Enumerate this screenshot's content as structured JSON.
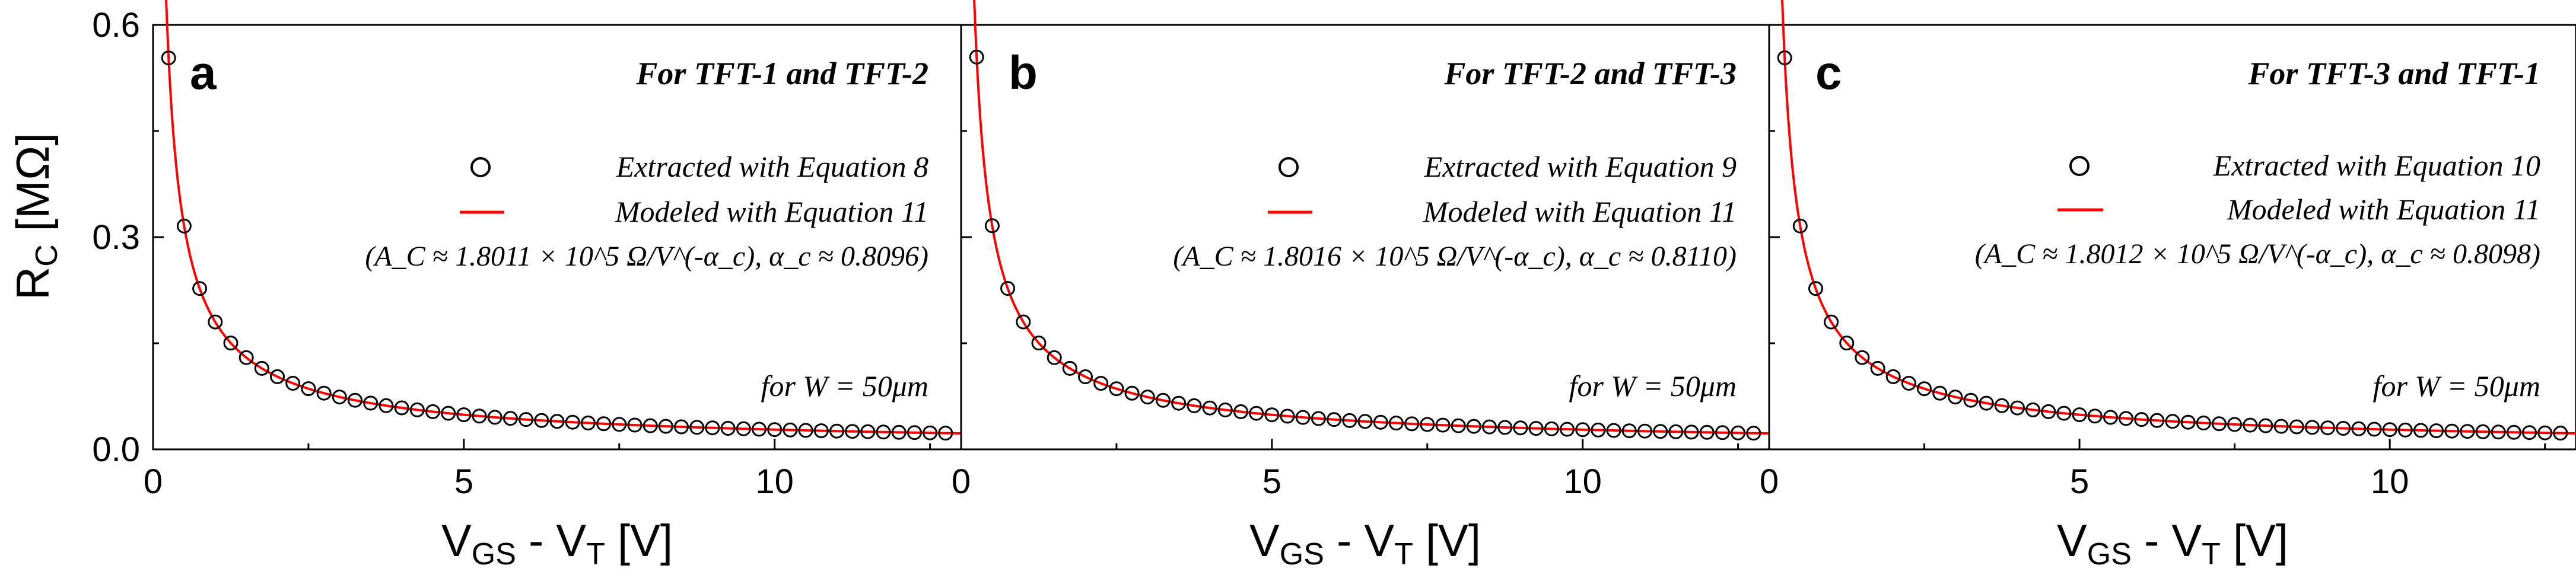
{
  "figure": {
    "ylabel_main": "R",
    "ylabel_sub": "C",
    "ylabel_unit": " [MΩ]",
    "xlabel_main": "V",
    "xlabel_sub1": "GS",
    "xlabel_mid": " - V",
    "xlabel_sub2": "T",
    "xlabel_unit": " [V]",
    "colors": {
      "model_line": "#ff0000",
      "markers": "#000000",
      "axes": "#000000"
    }
  },
  "chart_data": [
    {
      "type": "scatter",
      "panel_label": "a",
      "title": "For TFT-1 and TFT-2",
      "legend_extracted": "Extracted with Equation 8",
      "legend_modeled": "Modeled with Equation 11",
      "params": "(A_C ≈ 1.8011 × 10^5 Ω/V^(-α_c), α_c ≈ 0.8096)",
      "width_note": "for W = 50μm",
      "xlim": [
        0,
        13
      ],
      "ylim": [
        0,
        0.6
      ],
      "xticks": [
        0,
        5,
        10
      ],
      "yticks": [
        0.0,
        0.3,
        0.6
      ],
      "ytick_labels": [
        "0.0",
        "0.3",
        "0.6"
      ],
      "A": 0.18011,
      "alpha": 0.8096
    },
    {
      "type": "scatter",
      "panel_label": "b",
      "title": "For TFT-2 and TFT-3",
      "legend_extracted": "Extracted with Equation 9",
      "legend_modeled": "Modeled with Equation 11",
      "params": "(A_C ≈ 1.8016 × 10^5 Ω/V^(-α_c), α_c ≈ 0.8110)",
      "width_note": "for W = 50μm",
      "xlim": [
        0,
        13
      ],
      "ylim": [
        0,
        0.6
      ],
      "xticks": [
        0,
        5,
        10
      ],
      "yticks": [
        0.0,
        0.3,
        0.6
      ],
      "A": 0.18016,
      "alpha": 0.811
    },
    {
      "type": "scatter",
      "panel_label": "c",
      "title": "For TFT-3 and TFT-1",
      "legend_extracted": "Extracted with Equation 10",
      "legend_modeled": "Modeled with Equation 11",
      "params": "(A_C ≈ 1.8012 × 10^5 Ω/V^(-α_c), α_c ≈ 0.8098)",
      "width_note": "for W = 50μm",
      "xlim": [
        0,
        13
      ],
      "ylim": [
        0,
        0.6
      ],
      "xticks": [
        0,
        5,
        10
      ],
      "yticks": [
        0.0,
        0.3,
        0.6
      ],
      "A": 0.18012,
      "alpha": 0.8098
    }
  ]
}
